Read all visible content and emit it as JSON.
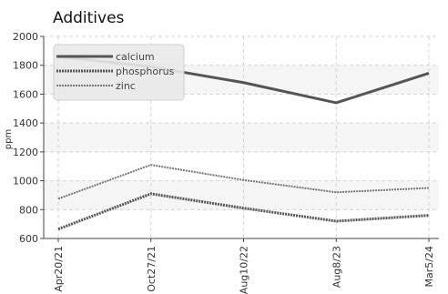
{
  "chart_data": {
    "type": "line",
    "title": "Additives",
    "xlabel": "",
    "ylabel": "ppm",
    "categories": [
      "Apr20/21",
      "Oct27/21",
      "Aug10/22",
      "Aug8/23",
      "Mar5/24"
    ],
    "ylim": [
      600,
      2000
    ],
    "yticks": [
      600,
      800,
      1000,
      1200,
      1400,
      1600,
      1800,
      2000
    ],
    "grid": true,
    "legend_position": "top-left",
    "series": [
      {
        "name": "calcium",
        "values": [
          1860,
          1790,
          1680,
          1540,
          1745
        ],
        "color": "#555555",
        "style": "solid"
      },
      {
        "name": "phosphorus",
        "values": [
          665,
          910,
          810,
          720,
          760
        ],
        "color": "#555555",
        "style": "dotted"
      },
      {
        "name": "zinc",
        "values": [
          875,
          1110,
          1005,
          920,
          950
        ],
        "color": "#777777",
        "style": "dotted"
      }
    ]
  }
}
